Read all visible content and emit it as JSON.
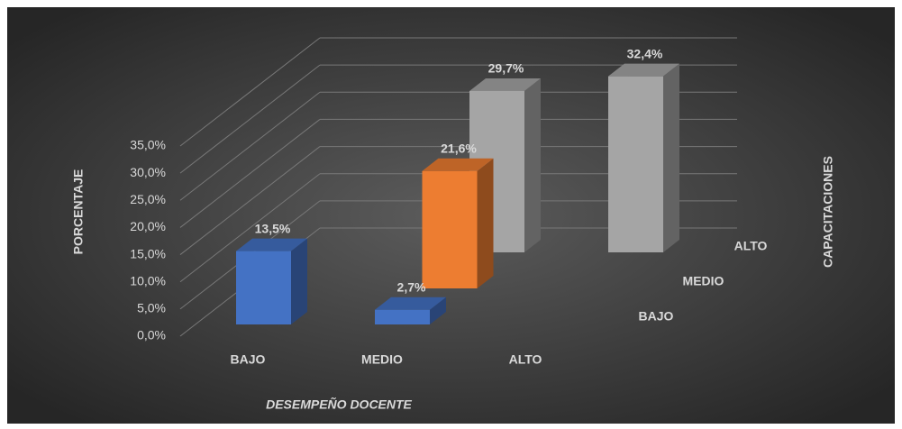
{
  "chart_data": {
    "type": "bar3d",
    "x_label": "DESEMPEÑO DOCENTE",
    "y_label": "PORCENTAJE",
    "z_label": "CAPACITACIONES",
    "categories": [
      "BAJO",
      "MEDIO",
      "ALTO"
    ],
    "series": [
      {
        "name": "BAJO",
        "color": "#4472c4",
        "values": [
          13.5,
          2.7,
          null
        ],
        "value_labels": [
          "13,5%",
          "2,7%",
          null
        ]
      },
      {
        "name": "MEDIO",
        "color": "#ed7d31",
        "values": [
          null,
          21.6,
          null
        ],
        "value_labels": [
          null,
          "21,6%",
          null
        ]
      },
      {
        "name": "ALTO",
        "color": "#a5a5a5",
        "values": [
          null,
          29.7,
          32.4
        ],
        "value_labels": [
          null,
          "29,7%",
          "32,4%"
        ]
      }
    ],
    "ylim": [
      0,
      35
    ],
    "yticks": [
      {
        "value": 0,
        "label": "0,0%"
      },
      {
        "value": 5,
        "label": "5,0%"
      },
      {
        "value": 10,
        "label": "10,0%"
      },
      {
        "value": 15,
        "label": "15,0%"
      },
      {
        "value": 20,
        "label": "20,0%"
      },
      {
        "value": 25,
        "label": "25,0%"
      },
      {
        "value": 30,
        "label": "30,0%"
      },
      {
        "value": 35,
        "label": "35,0%"
      }
    ],
    "grid": true
  }
}
